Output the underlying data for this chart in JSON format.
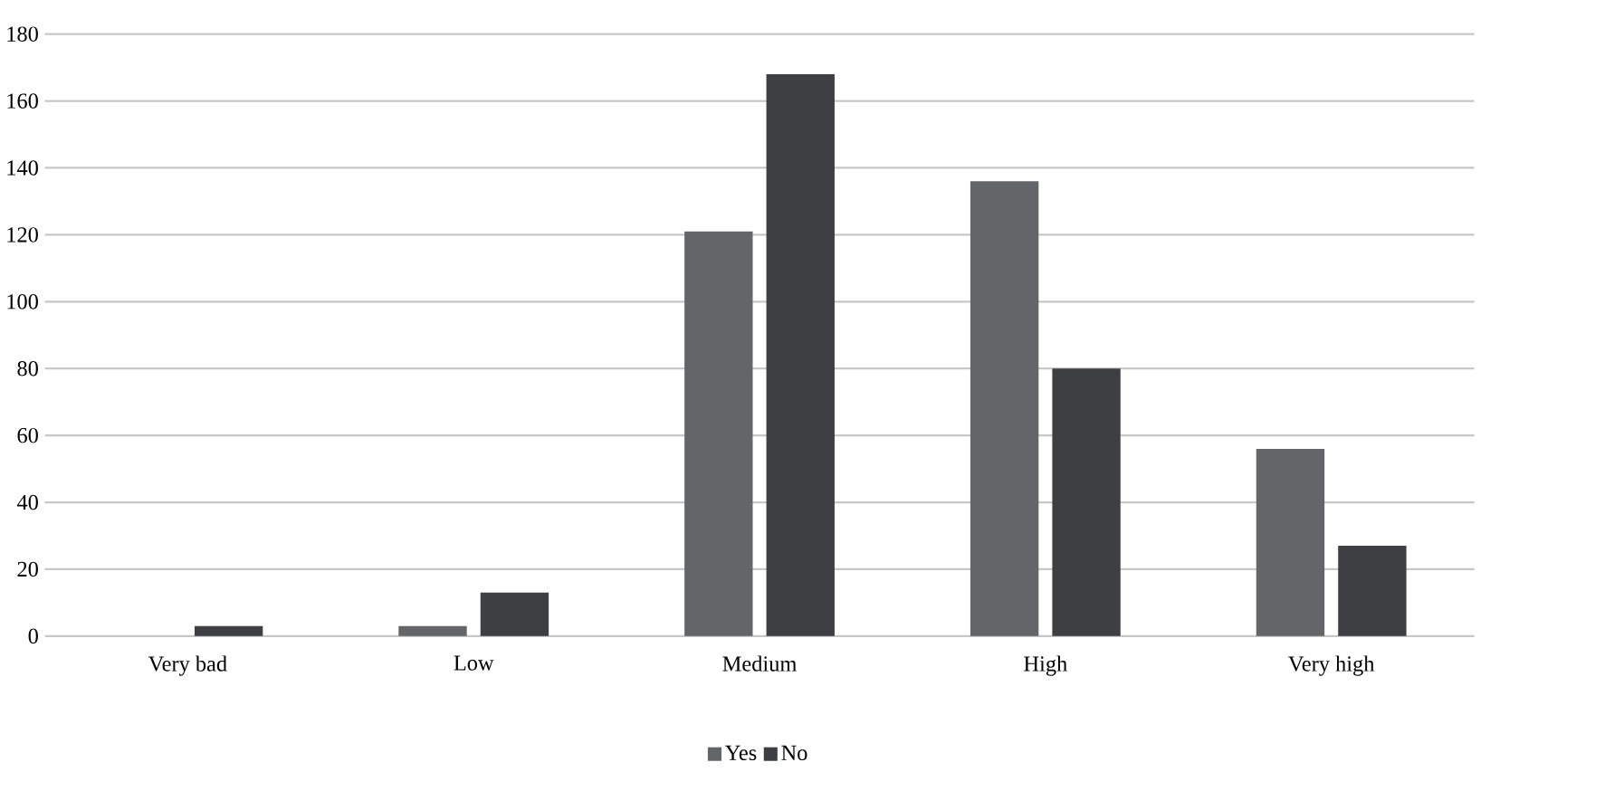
{
  "chart_data": {
    "type": "bar",
    "categories": [
      "Very bad",
      "Low",
      "Medium",
      "High",
      "Very high"
    ],
    "series": [
      {
        "name": "Yes",
        "color": "#646568",
        "values": [
          0,
          3,
          121,
          136,
          56
        ]
      },
      {
        "name": "No",
        "color": "#3e3f43",
        "values": [
          3,
          13,
          168,
          80,
          27
        ]
      }
    ],
    "ylim": [
      0,
      180
    ],
    "yticks": [
      0,
      20,
      40,
      60,
      80,
      100,
      120,
      140,
      160,
      180
    ],
    "grid": "y",
    "legend": "bottom"
  }
}
